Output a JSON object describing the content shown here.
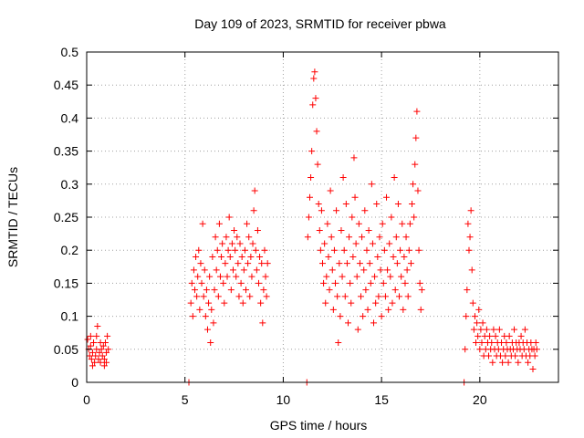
{
  "chart_data": {
    "type": "scatter",
    "title": "Day 109 of 2023, SRMTID for receiver pbwa",
    "xlabel": "GPS time / hours",
    "ylabel": "SRMTID / TECUs",
    "xlim": [
      0,
      24
    ],
    "ylim": [
      0,
      0.5
    ],
    "xticks": [
      0,
      5,
      10,
      15,
      20
    ],
    "xtick_labels": [
      "0",
      "5",
      "10",
      "15",
      "20"
    ],
    "yticks": [
      0,
      0.05,
      0.1,
      0.15,
      0.2,
      0.25,
      0.3,
      0.35,
      0.4,
      0.45,
      0.5
    ],
    "ytick_labels": [
      "0",
      "0.05",
      "0.1",
      "0.15",
      "0.2",
      "0.25",
      "0.3",
      "0.35",
      "0.4",
      "0.45",
      "0.5"
    ],
    "grid": true,
    "marker": "+",
    "color": "#ff0000",
    "series": [
      {
        "name": "SRMTID",
        "points": [
          [
            0.05,
            0.065
          ],
          [
            0.1,
            0.05
          ],
          [
            0.15,
            0.04
          ],
          [
            0.2,
            0.055
          ],
          [
            0.25,
            0.035
          ],
          [
            0.3,
            0.045
          ],
          [
            0.35,
            0.06
          ],
          [
            0.4,
            0.03
          ],
          [
            0.45,
            0.04
          ],
          [
            0.5,
            0.05
          ],
          [
            0.55,
            0.085
          ],
          [
            0.6,
            0.035
          ],
          [
            0.65,
            0.045
          ],
          [
            0.7,
            0.03
          ],
          [
            0.75,
            0.05
          ],
          [
            0.8,
            0.04
          ],
          [
            0.85,
            0.055
          ],
          [
            0.9,
            0.035
          ],
          [
            0.95,
            0.06
          ],
          [
            1.0,
            0.045
          ],
          [
            1.05,
            0.07
          ],
          [
            1.1,
            0.05
          ],
          [
            0.3,
            0.025
          ],
          [
            0.5,
            0.07
          ],
          [
            0.7,
            0.06
          ],
          [
            0.9,
            0.025
          ],
          [
            1.0,
            0.03
          ],
          [
            0.2,
            0.07
          ],
          [
            5.2,
            0.0
          ],
          [
            5.3,
            0.12
          ],
          [
            5.35,
            0.15
          ],
          [
            5.4,
            0.1
          ],
          [
            5.45,
            0.17
          ],
          [
            5.5,
            0.14
          ],
          [
            5.55,
            0.19
          ],
          [
            5.6,
            0.13
          ],
          [
            5.65,
            0.16
          ],
          [
            5.7,
            0.2
          ],
          [
            5.75,
            0.11
          ],
          [
            5.8,
            0.18
          ],
          [
            5.85,
            0.15
          ],
          [
            5.9,
            0.24
          ],
          [
            5.95,
            0.13
          ],
          [
            6.0,
            0.17
          ],
          [
            6.05,
            0.1
          ],
          [
            6.1,
            0.14
          ],
          [
            6.15,
            0.08
          ],
          [
            6.2,
            0.12
          ],
          [
            6.25,
            0.16
          ],
          [
            6.3,
            0.06
          ],
          [
            6.35,
            0.11
          ],
          [
            6.4,
            0.19
          ],
          [
            6.45,
            0.09
          ],
          [
            6.5,
            0.14
          ],
          [
            6.55,
            0.22
          ],
          [
            6.6,
            0.17
          ],
          [
            6.65,
            0.2
          ],
          [
            6.7,
            0.13
          ],
          [
            6.75,
            0.24
          ],
          [
            6.8,
            0.16
          ],
          [
            6.85,
            0.19
          ],
          [
            6.9,
            0.21
          ],
          [
            6.95,
            0.15
          ],
          [
            7.0,
            0.12
          ],
          [
            7.05,
            0.18
          ],
          [
            7.1,
            0.22
          ],
          [
            7.15,
            0.16
          ],
          [
            7.2,
            0.2
          ],
          [
            7.25,
            0.25
          ],
          [
            7.3,
            0.19
          ],
          [
            7.35,
            0.14
          ],
          [
            7.4,
            0.21
          ],
          [
            7.45,
            0.17
          ],
          [
            7.5,
            0.23
          ],
          [
            7.55,
            0.2
          ],
          [
            7.6,
            0.16
          ],
          [
            7.65,
            0.22
          ],
          [
            7.7,
            0.18
          ],
          [
            7.75,
            0.13
          ],
          [
            7.8,
            0.21
          ],
          [
            7.85,
            0.15
          ],
          [
            7.9,
            0.19
          ],
          [
            7.95,
            0.12
          ],
          [
            8.0,
            0.17
          ],
          [
            8.05,
            0.2
          ],
          [
            8.1,
            0.14
          ],
          [
            8.15,
            0.24
          ],
          [
            8.2,
            0.18
          ],
          [
            8.25,
            0.22
          ],
          [
            8.3,
            0.13
          ],
          [
            8.35,
            0.19
          ],
          [
            8.4,
            0.16
          ],
          [
            8.45,
            0.21
          ],
          [
            8.5,
            0.26
          ],
          [
            8.55,
            0.29
          ],
          [
            8.6,
            0.2
          ],
          [
            8.65,
            0.17
          ],
          [
            8.7,
            0.23
          ],
          [
            8.75,
            0.15
          ],
          [
            8.8,
            0.19
          ],
          [
            8.85,
            0.12
          ],
          [
            8.9,
            0.18
          ],
          [
            8.95,
            0.09
          ],
          [
            9.0,
            0.14
          ],
          [
            9.05,
            0.2
          ],
          [
            9.1,
            0.16
          ],
          [
            9.15,
            0.13
          ],
          [
            9.2,
            0.18
          ],
          [
            11.2,
            0.0
          ],
          [
            11.25,
            0.22
          ],
          [
            11.3,
            0.25
          ],
          [
            11.35,
            0.28
          ],
          [
            11.4,
            0.31
          ],
          [
            11.45,
            0.35
          ],
          [
            11.5,
            0.42
          ],
          [
            11.55,
            0.46
          ],
          [
            11.6,
            0.47
          ],
          [
            11.65,
            0.43
          ],
          [
            11.7,
            0.38
          ],
          [
            11.75,
            0.33
          ],
          [
            11.8,
            0.27
          ],
          [
            11.85,
            0.23
          ],
          [
            11.9,
            0.2
          ],
          [
            11.95,
            0.26
          ],
          [
            12.0,
            0.18
          ],
          [
            12.05,
            0.15
          ],
          [
            12.1,
            0.21
          ],
          [
            12.15,
            0.12
          ],
          [
            12.2,
            0.16
          ],
          [
            12.25,
            0.24
          ],
          [
            12.3,
            0.19
          ],
          [
            12.35,
            0.14
          ],
          [
            12.4,
            0.29
          ],
          [
            12.45,
            0.22
          ],
          [
            12.5,
            0.17
          ],
          [
            12.55,
            0.11
          ],
          [
            12.6,
            0.2
          ],
          [
            12.65,
            0.15
          ],
          [
            12.7,
            0.26
          ],
          [
            12.75,
            0.13
          ],
          [
            12.8,
            0.06
          ],
          [
            12.85,
            0.18
          ],
          [
            12.9,
            0.1
          ],
          [
            12.95,
            0.23
          ],
          [
            13.0,
            0.16
          ],
          [
            13.05,
            0.31
          ],
          [
            13.1,
            0.2
          ],
          [
            13.15,
            0.13
          ],
          [
            13.2,
            0.27
          ],
          [
            13.25,
            0.18
          ],
          [
            13.3,
            0.09
          ],
          [
            13.35,
            0.22
          ],
          [
            13.4,
            0.15
          ],
          [
            13.45,
            0.12
          ],
          [
            13.5,
            0.25
          ],
          [
            13.55,
            0.19
          ],
          [
            13.6,
            0.34
          ],
          [
            13.65,
            0.28
          ],
          [
            13.7,
            0.21
          ],
          [
            13.75,
            0.16
          ],
          [
            13.8,
            0.08
          ],
          [
            13.85,
            0.24
          ],
          [
            13.9,
            0.18
          ],
          [
            13.95,
            0.13
          ],
          [
            14.0,
            0.22
          ],
          [
            14.05,
            0.1
          ],
          [
            14.1,
            0.17
          ],
          [
            14.15,
            0.26
          ],
          [
            14.2,
            0.14
          ],
          [
            14.25,
            0.2
          ],
          [
            14.3,
            0.11
          ],
          [
            14.35,
            0.23
          ],
          [
            14.4,
            0.18
          ],
          [
            14.45,
            0.15
          ],
          [
            14.5,
            0.3
          ],
          [
            14.55,
            0.21
          ],
          [
            14.6,
            0.09
          ],
          [
            14.65,
            0.16
          ],
          [
            14.7,
            0.12
          ],
          [
            14.75,
            0.27
          ],
          [
            14.8,
            0.19
          ],
          [
            14.85,
            0.13
          ],
          [
            14.9,
            0.22
          ],
          [
            14.95,
            0.17
          ],
          [
            15.0,
            0.1
          ],
          [
            15.05,
            0.24
          ],
          [
            15.1,
            0.15
          ],
          [
            15.15,
            0.2
          ],
          [
            15.2,
            0.13
          ],
          [
            15.25,
            0.28
          ],
          [
            15.3,
            0.17
          ],
          [
            15.35,
            0.11
          ],
          [
            15.4,
            0.21
          ],
          [
            15.45,
            0.16
          ],
          [
            15.5,
            0.25
          ],
          [
            15.55,
            0.12
          ],
          [
            15.6,
            0.19
          ],
          [
            15.65,
            0.31
          ],
          [
            15.7,
            0.14
          ],
          [
            15.75,
            0.22
          ],
          [
            15.8,
            0.18
          ],
          [
            15.85,
            0.27
          ],
          [
            15.9,
            0.13
          ],
          [
            15.95,
            0.2
          ],
          [
            16.0,
            0.16
          ],
          [
            16.05,
            0.24
          ],
          [
            16.1,
            0.11
          ],
          [
            16.15,
            0.19
          ],
          [
            16.2,
            0.15
          ],
          [
            16.25,
            0.22
          ],
          [
            16.3,
            0.17
          ],
          [
            16.35,
            0.13
          ],
          [
            16.4,
            0.2
          ],
          [
            16.45,
            0.24
          ],
          [
            16.5,
            0.18
          ],
          [
            16.55,
            0.27
          ],
          [
            16.6,
            0.3
          ],
          [
            16.65,
            0.25
          ],
          [
            16.7,
            0.33
          ],
          [
            16.75,
            0.37
          ],
          [
            16.8,
            0.41
          ],
          [
            16.85,
            0.29
          ],
          [
            16.9,
            0.2
          ],
          [
            16.95,
            0.15
          ],
          [
            17.0,
            0.11
          ],
          [
            17.05,
            0.14
          ],
          [
            19.2,
            0.0
          ],
          [
            19.25,
            0.05
          ],
          [
            19.3,
            0.1
          ],
          [
            19.35,
            0.14
          ],
          [
            19.4,
            0.24
          ],
          [
            19.45,
            0.2
          ],
          [
            19.5,
            0.22
          ],
          [
            19.55,
            0.26
          ],
          [
            19.6,
            0.17
          ],
          [
            19.65,
            0.12
          ],
          [
            19.7,
            0.08
          ],
          [
            19.75,
            0.1
          ],
          [
            19.8,
            0.06
          ],
          [
            19.85,
            0.09
          ],
          [
            19.9,
            0.07
          ],
          [
            19.95,
            0.11
          ],
          [
            20.0,
            0.05
          ],
          [
            20.05,
            0.08
          ],
          [
            20.1,
            0.06
          ],
          [
            20.15,
            0.09
          ],
          [
            20.2,
            0.04
          ],
          [
            20.25,
            0.07
          ],
          [
            20.3,
            0.05
          ],
          [
            20.35,
            0.08
          ],
          [
            20.4,
            0.06
          ],
          [
            20.45,
            0.04
          ],
          [
            20.5,
            0.07
          ],
          [
            20.55,
            0.05
          ],
          [
            20.6,
            0.06
          ],
          [
            20.65,
            0.03
          ],
          [
            20.7,
            0.08
          ],
          [
            20.75,
            0.05
          ],
          [
            20.8,
            0.07
          ],
          [
            20.85,
            0.04
          ],
          [
            20.9,
            0.06
          ],
          [
            20.95,
            0.05
          ],
          [
            21.0,
            0.08
          ],
          [
            21.05,
            0.04
          ],
          [
            21.1,
            0.06
          ],
          [
            21.15,
            0.03
          ],
          [
            21.2,
            0.05
          ],
          [
            21.25,
            0.07
          ],
          [
            21.3,
            0.04
          ],
          [
            21.35,
            0.06
          ],
          [
            21.4,
            0.05
          ],
          [
            21.45,
            0.03
          ],
          [
            21.5,
            0.07
          ],
          [
            21.55,
            0.05
          ],
          [
            21.6,
            0.04
          ],
          [
            21.65,
            0.06
          ],
          [
            21.7,
            0.05
          ],
          [
            21.75,
            0.08
          ],
          [
            21.8,
            0.04
          ],
          [
            21.85,
            0.06
          ],
          [
            21.9,
            0.05
          ],
          [
            21.95,
            0.03
          ],
          [
            22.0,
            0.06
          ],
          [
            22.05,
            0.05
          ],
          [
            22.1,
            0.07
          ],
          [
            22.15,
            0.04
          ],
          [
            22.2,
            0.06
          ],
          [
            22.25,
            0.05
          ],
          [
            22.3,
            0.08
          ],
          [
            22.35,
            0.04
          ],
          [
            22.4,
            0.06
          ],
          [
            22.45,
            0.03
          ],
          [
            22.5,
            0.05
          ],
          [
            22.55,
            0.04
          ],
          [
            22.6,
            0.06
          ],
          [
            22.65,
            0.05
          ],
          [
            22.7,
            0.02
          ],
          [
            22.75,
            0.05
          ],
          [
            22.8,
            0.04
          ],
          [
            22.85,
            0.06
          ],
          [
            22.9,
            0.05
          ]
        ]
      }
    ]
  }
}
